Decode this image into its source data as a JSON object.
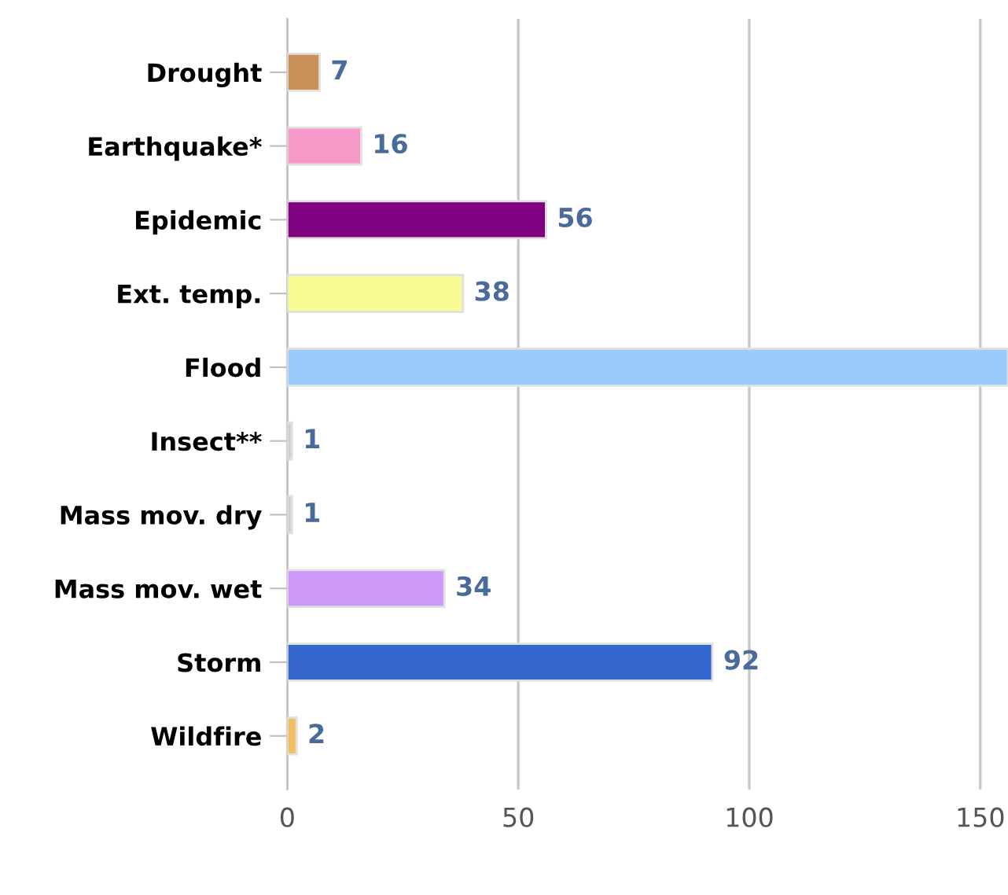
{
  "chart_data": {
    "type": "bar",
    "orientation": "horizontal",
    "categories": [
      "Drought",
      "Earthquake*",
      "Epidemic",
      "Ext. temp.",
      "Flood",
      "Insect**",
      "Mass mov. dry",
      "Mass mov. wet",
      "Storm",
      "Wildfire"
    ],
    "values": [
      7,
      16,
      56,
      38,
      156,
      1,
      1,
      34,
      92,
      2
    ],
    "value_labels": [
      "7",
      "16",
      "56",
      "38",
      null,
      "1",
      "1",
      "34",
      "92",
      "2"
    ],
    "colors": [
      "#c8915a",
      "#f799c8",
      "#7f0080",
      "#fbfb94",
      "#99ccfb",
      "#cfcfcf",
      "#cfcfcf",
      "#cc99f9",
      "#3366cc",
      "#f0c060"
    ],
    "xlim": [
      0,
      156
    ],
    "xticks": [
      0,
      50,
      100,
      150
    ],
    "grid": "x"
  }
}
